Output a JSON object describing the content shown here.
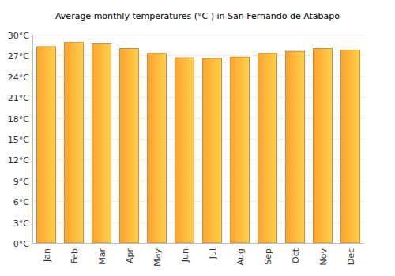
{
  "chart_data": {
    "type": "bar",
    "title": "Average monthly temperatures (°C ) in San Fernando de Atabapo",
    "categories": [
      "Jan",
      "Feb",
      "Mar",
      "Apr",
      "May",
      "Jun",
      "Jul",
      "Aug",
      "Sep",
      "Oct",
      "Nov",
      "Dec"
    ],
    "values": [
      28.3,
      28.9,
      28.7,
      28.0,
      27.3,
      26.7,
      26.6,
      26.8,
      27.3,
      27.6,
      28.0,
      27.8
    ],
    "color": "#fca32f",
    "ylim": [
      0,
      30
    ],
    "yticks": [
      {
        "value": 0,
        "label": "0°C"
      },
      {
        "value": 3,
        "label": "3°C"
      },
      {
        "value": 6,
        "label": "6°C"
      },
      {
        "value": 9,
        "label": "9°C"
      },
      {
        "value": 12,
        "label": "12°C"
      },
      {
        "value": 15,
        "label": "15°C"
      },
      {
        "value": 18,
        "label": "18°C"
      },
      {
        "value": 21,
        "label": "21°C"
      },
      {
        "value": 24,
        "label": "24°C"
      },
      {
        "value": 27,
        "label": "27°C"
      },
      {
        "value": 30,
        "label": "30°C"
      }
    ],
    "grid": true
  }
}
